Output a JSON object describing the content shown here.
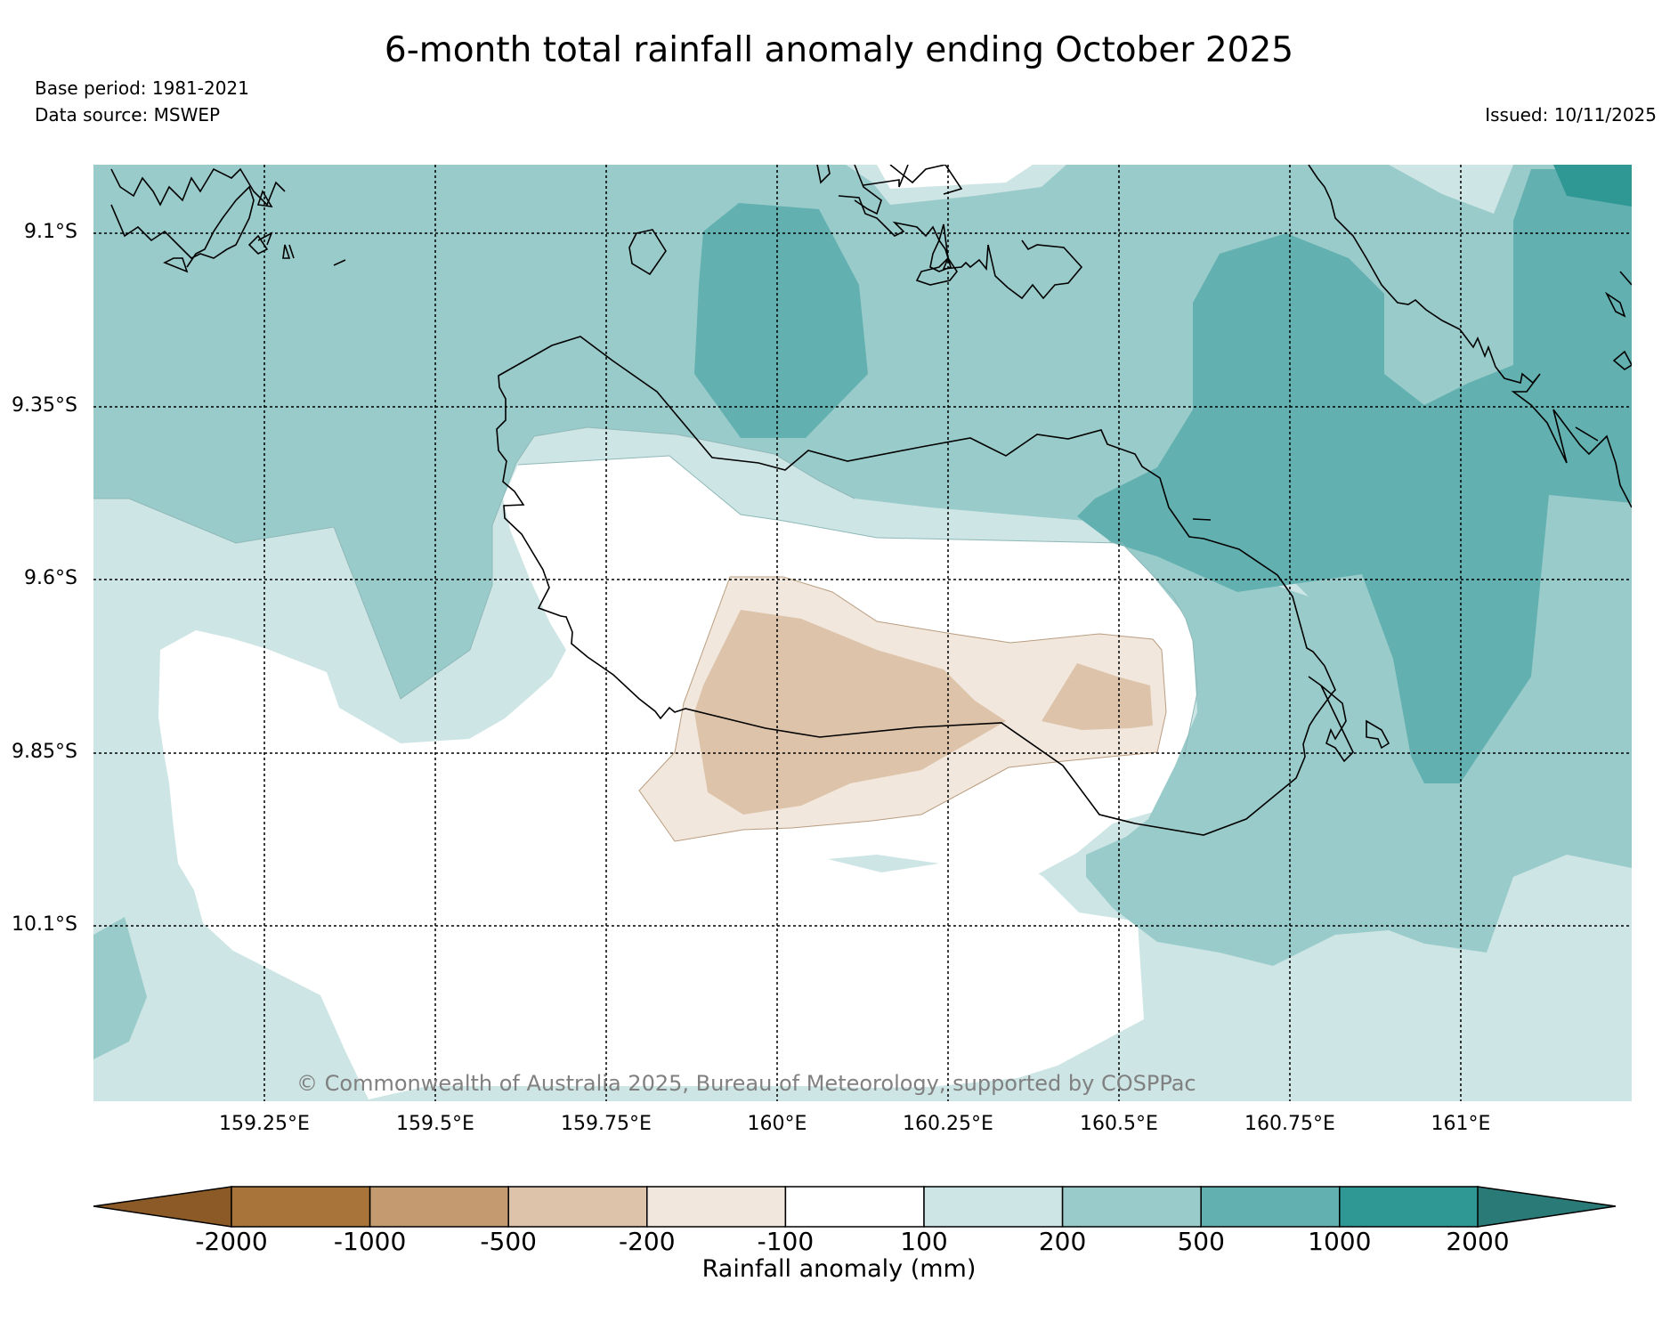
{
  "header": {
    "title": "6-month total rainfall anomaly ending October 2025",
    "base_period": "Base period: 1981-2021",
    "data_source": "Data source: MSWEP",
    "issued": "Issued: 10/11/2025"
  },
  "map": {
    "lat_labels": [
      "9.1°S",
      "9.35°S",
      "9.6°S",
      "9.85°S",
      "10.1°S"
    ],
    "lon_labels": [
      "159.25°E",
      "159.5°E",
      "159.75°E",
      "160°E",
      "160.25°E",
      "160.5°E",
      "160.75°E",
      "161°E"
    ],
    "copyright": "© Commonwealth of Australia 2025, Bureau of Meteorology, supported by COSPPac"
  },
  "colorbar": {
    "title": "Rainfall anomaly (mm)",
    "labels": [
      "-2000",
      "-1000",
      "-500",
      "-200",
      "-100",
      "100",
      "200",
      "500",
      "1000",
      "2000"
    ],
    "colors": {
      "below_min": "#8c5a26",
      "c1": "#a8743a",
      "c2": "#c49a70",
      "c3": "#dcc3a9",
      "c4": "#f2e7dd",
      "c5": "#ffffff",
      "c6": "#cde5e4",
      "c7": "#9acbcb",
      "c8": "#63b0b0",
      "c9": "#2f9794",
      "above_max": "#2a7a78"
    }
  }
}
